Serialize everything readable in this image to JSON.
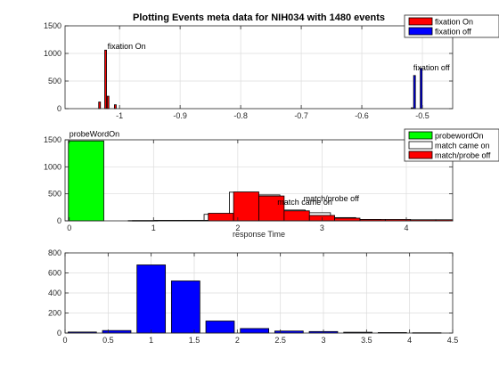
{
  "figure": {
    "background": "#ffffff",
    "axes_color": "#262626",
    "grid_color": "#dcdcdc"
  },
  "chart_data": [
    {
      "type": "bar",
      "title": "Plotting Events meta data for NIH034 with 1480 events",
      "xlabel": "",
      "ylabel": "",
      "xlim": [
        -1.09,
        -0.45
      ],
      "ylim": [
        0,
        1500
      ],
      "grid": true,
      "xticks": [
        -1,
        -0.9,
        -0.8,
        -0.7,
        -0.6,
        -0.5
      ],
      "xtick_labels": [
        "-1",
        "-0.9",
        "-0.8",
        "-0.7",
        "-0.6",
        "-0.5"
      ],
      "yticks": [
        0,
        500,
        1000,
        1500
      ],
      "ytick_labels": [
        "0",
        "500",
        "1000",
        "1500"
      ],
      "legend": {
        "placement": "top-right",
        "entries": [
          "fixation On",
          "fixation off"
        ]
      },
      "annotations": [
        {
          "text": "fixation On",
          "x": -1.02,
          "y": 1080
        },
        {
          "text": "fixation off",
          "x": -0.515,
          "y": 690
        }
      ],
      "series": [
        {
          "name": "fixation On",
          "color": "#ff0000",
          "bar_width": 0.003,
          "x": [
            -1.033,
            -1.023,
            -1.019,
            -1.007
          ],
          "values": [
            120,
            1060,
            225,
            70
          ]
        },
        {
          "name": "fixation off",
          "color": "#0000ff",
          "bar_width": 0.003,
          "x": [
            -0.517,
            -0.513,
            -0.502
          ],
          "values": [
            15,
            600,
            730
          ]
        }
      ]
    },
    {
      "type": "bar",
      "title": "",
      "xlabel": "response Time",
      "ylabel": "",
      "xlim": [
        -0.05,
        4.55
      ],
      "ylim": [
        0,
        1500
      ],
      "grid": true,
      "xticks": [
        0,
        1,
        2,
        3,
        4
      ],
      "xtick_labels": [
        "0",
        "1",
        "2",
        "3",
        "4"
      ],
      "yticks": [
        0,
        500,
        1000,
        1500
      ],
      "ytick_labels": [
        "0",
        "500",
        "1000",
        "1500"
      ],
      "legend": {
        "placement": "top-right",
        "entries": [
          "probewordOn",
          "match came on",
          "match/probe off"
        ]
      },
      "annotations": [
        {
          "text": "probeWordOn",
          "x": 0.0,
          "y": 1560
        },
        {
          "text": "match came on",
          "x": 2.47,
          "y": 300
        },
        {
          "text": "match/probe off",
          "x": 2.78,
          "y": 360
        }
      ],
      "series": [
        {
          "name": "probewordOn",
          "color": "#00ff00",
          "bar_width": 0.42,
          "x": [
            0.2
          ],
          "values": [
            1480
          ]
        },
        {
          "name": "match came on",
          "color": "#ffffff",
          "bar_width": 0.3,
          "x": [
            0.85,
            1.15,
            1.45,
            1.75,
            2.05,
            2.35,
            2.65,
            2.95,
            3.25,
            3.55,
            3.85,
            4.15,
            4.45
          ],
          "values": [
            5,
            10,
            10,
            120,
            530,
            480,
            200,
            150,
            60,
            25,
            15,
            10,
            10
          ]
        },
        {
          "name": "match/probe off",
          "color": "#ff0000",
          "bar_width": 0.3,
          "x": [
            0.9,
            1.2,
            1.5,
            1.8,
            2.1,
            2.4,
            2.7,
            3.0,
            3.3,
            3.6,
            3.9,
            4.2,
            4.5
          ],
          "values": [
            5,
            8,
            10,
            140,
            535,
            460,
            185,
            100,
            50,
            25,
            25,
            20,
            20
          ]
        }
      ]
    },
    {
      "type": "bar",
      "title": "",
      "xlabel": "",
      "ylabel": "",
      "xlim": [
        0,
        4.5
      ],
      "ylim": [
        0,
        800
      ],
      "grid": true,
      "xticks": [
        0,
        0.5,
        1,
        1.5,
        2,
        2.5,
        3,
        3.5,
        4,
        4.5
      ],
      "xtick_labels": [
        "0",
        "0.5",
        "1",
        "1.5",
        "2",
        "2.5",
        "3",
        "3.5",
        "4",
        "4.5"
      ],
      "yticks": [
        0,
        200,
        400,
        600,
        800
      ],
      "ytick_labels": [
        "0",
        "200",
        "400",
        "600",
        "800"
      ],
      "series": [
        {
          "name": "",
          "color": "#0000ff",
          "bar_width": 0.33,
          "x": [
            0.2,
            0.6,
            1.0,
            1.4,
            1.8,
            2.2,
            2.6,
            3.0,
            3.4,
            3.8,
            4.2
          ],
          "values": [
            10,
            25,
            680,
            520,
            120,
            45,
            20,
            15,
            8,
            5,
            3
          ]
        }
      ]
    }
  ]
}
